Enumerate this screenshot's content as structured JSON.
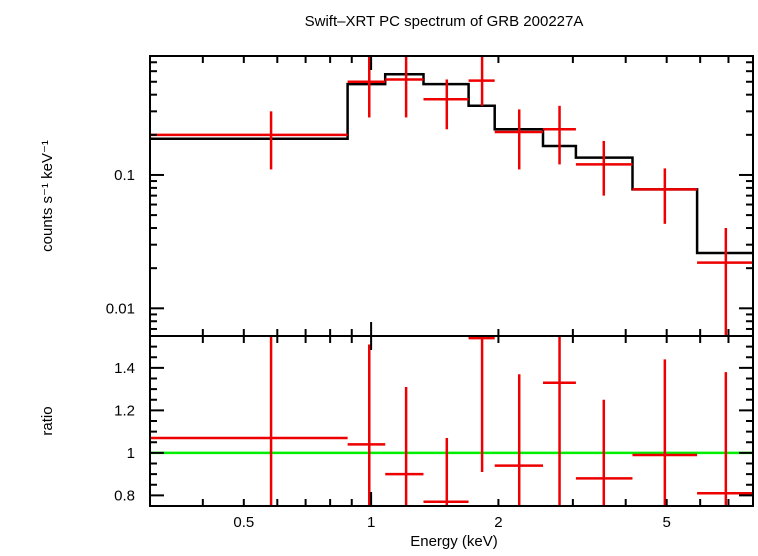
{
  "chart_data": [
    {
      "type": "step",
      "title": "Swift–XRT PC spectrum of GRB 200227A",
      "ylabel": "counts s⁻¹ keV⁻¹",
      "xscale": "log",
      "yscale": "log",
      "xlim": [
        0.3,
        8.0
      ],
      "ylim": [
        0.0062,
        0.78
      ],
      "yticks": [
        {
          "value": 0.1,
          "label": "0.1"
        },
        {
          "value": 0.01,
          "label": "0.01"
        }
      ],
      "data_points": [
        {
          "x_lo": 0.3,
          "x_hi": 0.88,
          "x": 0.58,
          "y": 0.2,
          "y_lo": 0.11,
          "y_hi": 0.3
        },
        {
          "x_lo": 0.88,
          "x_hi": 1.08,
          "x": 0.99,
          "y": 0.5,
          "y_lo": 0.27,
          "y_hi": 0.8
        },
        {
          "x_lo": 1.08,
          "x_hi": 1.33,
          "x": 1.21,
          "y": 0.52,
          "y_lo": 0.27,
          "y_hi": 0.8
        },
        {
          "x_lo": 1.33,
          "x_hi": 1.7,
          "x": 1.51,
          "y": 0.37,
          "y_lo": 0.22,
          "y_hi": 0.52
        },
        {
          "x_lo": 1.7,
          "x_hi": 1.96,
          "x": 1.83,
          "y": 0.51,
          "y_lo": 0.33,
          "y_hi": 0.8
        },
        {
          "x_lo": 1.96,
          "x_hi": 2.55,
          "x": 2.24,
          "y": 0.21,
          "y_lo": 0.11,
          "y_hi": 0.31
        },
        {
          "x_lo": 2.55,
          "x_hi": 3.05,
          "x": 2.79,
          "y": 0.22,
          "y_lo": 0.12,
          "y_hi": 0.33
        },
        {
          "x_lo": 3.05,
          "x_hi": 4.15,
          "x": 3.55,
          "y": 0.12,
          "y_lo": 0.07,
          "y_hi": 0.18
        },
        {
          "x_lo": 4.15,
          "x_hi": 5.9,
          "x": 4.95,
          "y": 0.078,
          "y_lo": 0.043,
          "y_hi": 0.112
        },
        {
          "x_lo": 5.9,
          "x_hi": 8.0,
          "x": 6.9,
          "y": 0.022,
          "y_lo": 0.0062,
          "y_hi": 0.04
        }
      ],
      "model_steps": [
        {
          "x_lo": 0.3,
          "x_hi": 0.88,
          "y": 0.187
        },
        {
          "x_lo": 0.88,
          "x_hi": 1.08,
          "y": 0.48
        },
        {
          "x_lo": 1.08,
          "x_hi": 1.33,
          "y": 0.57
        },
        {
          "x_lo": 1.33,
          "x_hi": 1.7,
          "y": 0.48
        },
        {
          "x_lo": 1.7,
          "x_hi": 1.96,
          "y": 0.33
        },
        {
          "x_lo": 1.96,
          "x_hi": 2.55,
          "y": 0.22
        },
        {
          "x_lo": 2.55,
          "x_hi": 3.05,
          "y": 0.165
        },
        {
          "x_lo": 3.05,
          "x_hi": 4.15,
          "y": 0.135
        },
        {
          "x_lo": 4.15,
          "x_hi": 5.9,
          "y": 0.078
        },
        {
          "x_lo": 5.9,
          "x_hi": 8.0,
          "y": 0.026
        }
      ],
      "colors": {
        "data": "#ee0000",
        "model": "#000000"
      }
    },
    {
      "type": "scatter",
      "xlabel": "Energy (keV)",
      "ylabel": "ratio",
      "xscale": "log",
      "yscale": "linear",
      "xlim": [
        0.3,
        8.0
      ],
      "ylim": [
        0.75,
        1.55
      ],
      "xticks": [
        {
          "value": 0.5,
          "label": "0.5"
        },
        {
          "value": 1,
          "label": "1"
        },
        {
          "value": 2,
          "label": "2"
        },
        {
          "value": 5,
          "label": "5"
        }
      ],
      "yticks": [
        {
          "value": 0.8,
          "label": "0.8"
        },
        {
          "value": 1.0,
          "label": "1"
        },
        {
          "value": 1.2,
          "label": "1.2"
        },
        {
          "value": 1.4,
          "label": "1.4"
        }
      ],
      "reference_line": {
        "y": 1.0,
        "color": "#00ee00"
      },
      "data_points": [
        {
          "x_lo": 0.3,
          "x_hi": 0.88,
          "x": 0.58,
          "y": 1.07,
          "y_lo": 0.75,
          "y_hi": 1.55
        },
        {
          "x_lo": 0.88,
          "x_hi": 1.08,
          "x": 0.99,
          "y": 1.04,
          "y_lo": 0.75,
          "y_hi": 1.51
        },
        {
          "x_lo": 1.08,
          "x_hi": 1.33,
          "x": 1.21,
          "y": 0.9,
          "y_lo": 0.75,
          "y_hi": 1.31
        },
        {
          "x_lo": 1.33,
          "x_hi": 1.7,
          "x": 1.51,
          "y": 0.77,
          "y_lo": 0.75,
          "y_hi": 1.07
        },
        {
          "x_lo": 1.7,
          "x_hi": 1.96,
          "x": 1.83,
          "y": 1.54,
          "y_lo": 0.91,
          "y_hi": 1.55
        },
        {
          "x_lo": 1.96,
          "x_hi": 2.55,
          "x": 2.24,
          "y": 0.94,
          "y_lo": 0.75,
          "y_hi": 1.37
        },
        {
          "x_lo": 2.55,
          "x_hi": 3.05,
          "x": 2.79,
          "y": 1.33,
          "y_lo": 0.75,
          "y_hi": 1.55
        },
        {
          "x_lo": 3.05,
          "x_hi": 4.15,
          "x": 3.55,
          "y": 0.88,
          "y_lo": 0.75,
          "y_hi": 1.25
        },
        {
          "x_lo": 4.15,
          "x_hi": 5.9,
          "x": 4.95,
          "y": 0.99,
          "y_lo": 0.75,
          "y_hi": 1.44
        },
        {
          "x_lo": 5.9,
          "x_hi": 8.0,
          "x": 6.9,
          "y": 0.81,
          "y_lo": 0.75,
          "y_hi": 1.38
        }
      ],
      "colors": {
        "data": "#ee0000"
      }
    }
  ]
}
